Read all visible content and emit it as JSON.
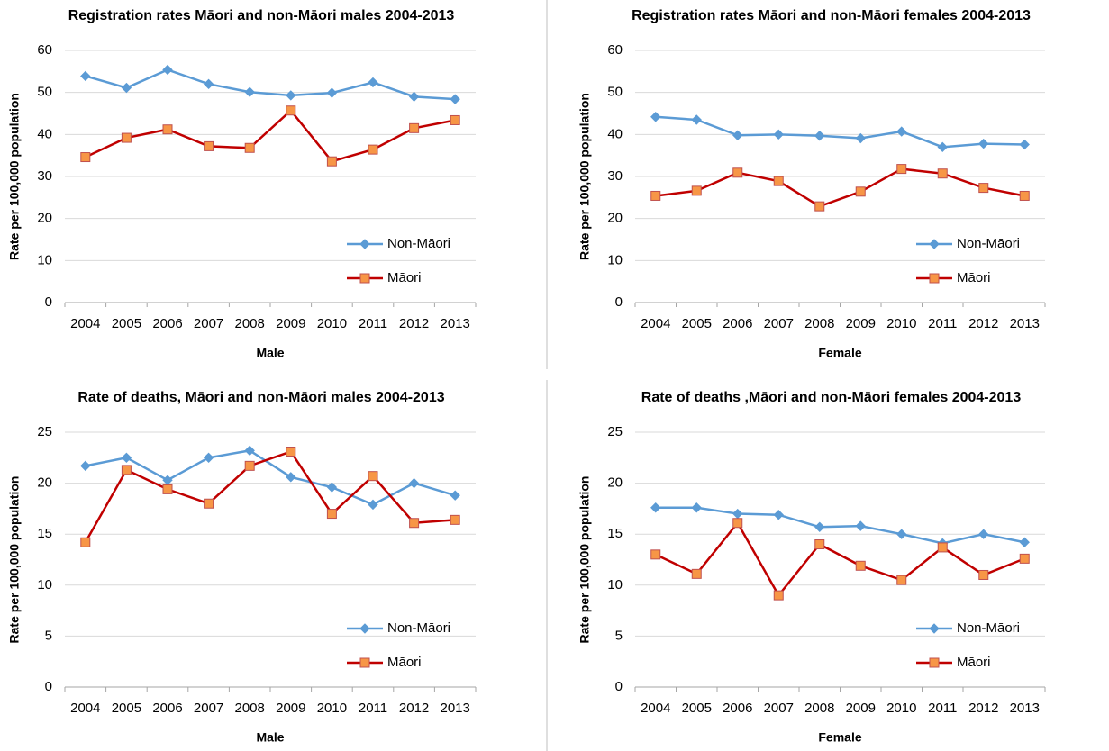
{
  "chart_data": [
    {
      "type": "line",
      "title": "Registration rates Māori and non-Māori males 2004-2013",
      "x_label": "Male",
      "y_label": "Rate per 100,000 population",
      "categories": [
        "2004",
        "2005",
        "2006",
        "2007",
        "2008",
        "2009",
        "2010",
        "2011",
        "2012",
        "2013"
      ],
      "series": [
        {
          "name": "Non-Māori",
          "color": "#5b9bd5",
          "marker": "diamond",
          "marker_fill": "#5b9bd5",
          "values": [
            53.9,
            51.1,
            55.4,
            52.0,
            50.1,
            49.3,
            49.9,
            52.4,
            49.0,
            48.4
          ]
        },
        {
          "name": "Māori",
          "color": "#c00000",
          "marker": "square",
          "marker_fill": "#f79646",
          "values": [
            34.6,
            39.2,
            41.2,
            37.2,
            36.8,
            45.7,
            33.6,
            36.4,
            41.5,
            43.4
          ]
        }
      ],
      "ylim": [
        0,
        60
      ],
      "yticks": [
        0,
        10,
        20,
        30,
        40,
        50,
        60
      ],
      "grid": true,
      "legend": "lower right"
    },
    {
      "type": "line",
      "title": "Registration rates Māori and non-Māori females 2004-2013",
      "x_label": "Female",
      "y_label": "Rate per 100,000 population",
      "categories": [
        "2004",
        "2005",
        "2006",
        "2007",
        "2008",
        "2009",
        "2010",
        "2011",
        "2012",
        "2013"
      ],
      "series": [
        {
          "name": "Non-Māori",
          "color": "#5b9bd5",
          "marker": "diamond",
          "marker_fill": "#5b9bd5",
          "values": [
            44.2,
            43.5,
            39.8,
            40.0,
            39.7,
            39.1,
            40.7,
            37.0,
            37.8,
            37.6
          ]
        },
        {
          "name": "Māori",
          "color": "#c00000",
          "marker": "square",
          "marker_fill": "#f79646",
          "values": [
            25.4,
            26.6,
            30.9,
            28.9,
            22.9,
            26.4,
            31.8,
            30.7,
            27.3,
            25.4
          ]
        }
      ],
      "ylim": [
        0,
        60
      ],
      "yticks": [
        0,
        10,
        20,
        30,
        40,
        50,
        60
      ],
      "grid": true,
      "legend": "lower right"
    },
    {
      "type": "line",
      "title": "Rate of deaths, Māori and non-Māori males 2004-2013",
      "x_label": "Male",
      "y_label": "Rate per 100,000 population",
      "categories": [
        "2004",
        "2005",
        "2006",
        "2007",
        "2008",
        "2009",
        "2010",
        "2011",
        "2012",
        "2013"
      ],
      "series": [
        {
          "name": "Non-Māori",
          "color": "#5b9bd5",
          "marker": "diamond",
          "marker_fill": "#5b9bd5",
          "values": [
            21.7,
            22.5,
            20.3,
            22.5,
            23.2,
            20.6,
            19.6,
            17.9,
            20.0,
            18.8
          ]
        },
        {
          "name": "Māori",
          "color": "#c00000",
          "marker": "square",
          "marker_fill": "#f79646",
          "values": [
            14.2,
            21.3,
            19.4,
            18.0,
            21.7,
            23.1,
            17.0,
            20.7,
            16.1,
            16.4
          ]
        }
      ],
      "ylim": [
        0,
        25
      ],
      "yticks": [
        0,
        5,
        10,
        15,
        20,
        25
      ],
      "grid": true,
      "legend": "lower right"
    },
    {
      "type": "line",
      "title": "Rate of deaths ,Māori and non-Māori females 2004-2013",
      "x_label": "Female",
      "y_label": "Rate per 100,000 population",
      "categories": [
        "2004",
        "2005",
        "2006",
        "2007",
        "2008",
        "2009",
        "2010",
        "2011",
        "2012",
        "2013"
      ],
      "series": [
        {
          "name": "Non-Māori",
          "color": "#5b9bd5",
          "marker": "diamond",
          "marker_fill": "#5b9bd5",
          "values": [
            17.6,
            17.6,
            17.0,
            16.9,
            15.7,
            15.8,
            15.0,
            14.1,
            15.0,
            14.2
          ]
        },
        {
          "name": "Māori",
          "color": "#c00000",
          "marker": "square",
          "marker_fill": "#f79646",
          "values": [
            13.0,
            11.1,
            16.1,
            9.0,
            14.0,
            11.9,
            10.5,
            13.7,
            11.0,
            12.6
          ]
        }
      ],
      "ylim": [
        0,
        25
      ],
      "yticks": [
        0,
        5,
        10,
        15,
        20,
        25
      ],
      "grid": true,
      "legend": "lower right"
    }
  ]
}
